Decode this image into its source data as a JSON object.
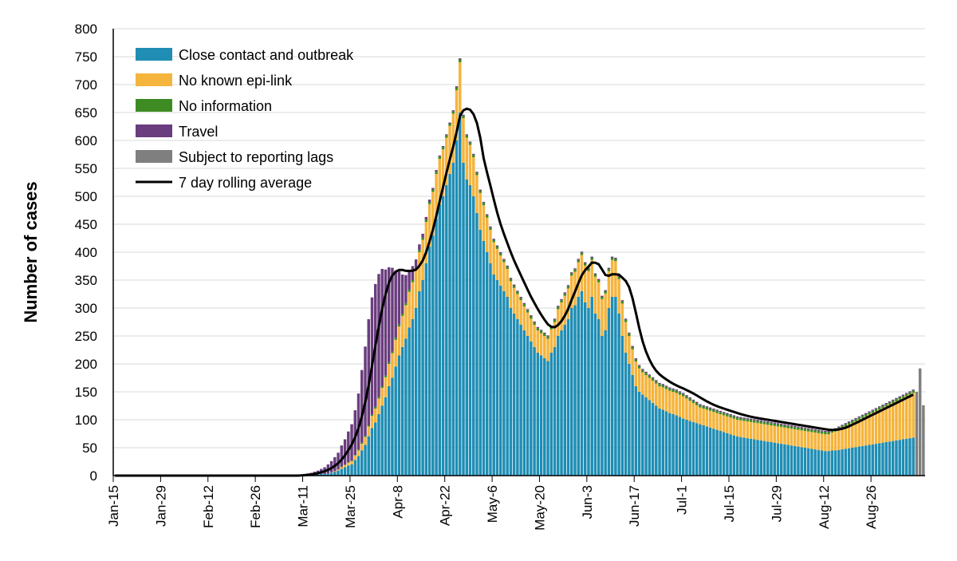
{
  "chart_data": {
    "type": "bar",
    "stacked": true,
    "title": "",
    "xlabel": "",
    "ylabel": "Number of cases",
    "ylim": [
      0,
      800
    ],
    "yticks": [
      0,
      50,
      100,
      150,
      200,
      250,
      300,
      350,
      400,
      450,
      500,
      550,
      600,
      650,
      700,
      750,
      800
    ],
    "xticks": [
      "Jan-15",
      "Jan-29",
      "Feb-12",
      "Feb-26",
      "Mar-11",
      "Mar-25",
      "Apr-8",
      "Apr-22",
      "May-6",
      "May-20",
      "Jun-3",
      "Jun-17",
      "Jul-1",
      "Jul-15",
      "Jul-29",
      "Aug-12",
      "Aug-26"
    ],
    "grid": true,
    "legend_position": "top-left",
    "x_start": "Jan-15",
    "colors": {
      "close_contact": "#1f8db4",
      "no_known": "#f5b43c",
      "no_info": "#3f8b23",
      "travel": "#6a3d7e",
      "lag": "#7f7f7f",
      "avg": "#000000",
      "grid": "#d9d9d9",
      "axis": "#000000"
    },
    "series": [
      {
        "key": "close_contact",
        "name": "Close contact and outbreak"
      },
      {
        "key": "no_known",
        "name": "No known epi-link"
      },
      {
        "key": "no_info",
        "name": "No information"
      },
      {
        "key": "travel",
        "name": "Travel"
      },
      {
        "key": "lag",
        "name": "Subject to reporting lags"
      },
      {
        "key": "avg",
        "name": "7 day rolling average",
        "type": "line"
      }
    ],
    "daily_data": {
      "close_contact": [
        0,
        0,
        0,
        0,
        0,
        0,
        0,
        0,
        0,
        0,
        0,
        0,
        0,
        0,
        0,
        0,
        0,
        0,
        0,
        0,
        0,
        0,
        0,
        0,
        0,
        0,
        0,
        0,
        0,
        0,
        0,
        0,
        0,
        0,
        0,
        0,
        0,
        0,
        0,
        0,
        0,
        0,
        0,
        0,
        0,
        0,
        0,
        0,
        0,
        0,
        0,
        0,
        0,
        0,
        0,
        1,
        1,
        1,
        1,
        2,
        2,
        3,
        3,
        4,
        5,
        7,
        9,
        12,
        15,
        18,
        20,
        28,
        35,
        45,
        55,
        70,
        85,
        95,
        110,
        125,
        140,
        160,
        175,
        195,
        215,
        230,
        245,
        265,
        280,
        300,
        330,
        350,
        380,
        410,
        430,
        460,
        485,
        500,
        520,
        540,
        560,
        600,
        650,
        560,
        530,
        520,
        500,
        470,
        440,
        420,
        400,
        380,
        360,
        350,
        340,
        330,
        320,
        300,
        290,
        280,
        270,
        260,
        250,
        240,
        230,
        220,
        215,
        210,
        205,
        220,
        230,
        250,
        260,
        270,
        280,
        300,
        305,
        320,
        330,
        310,
        300,
        320,
        290,
        280,
        250,
        260,
        300,
        320,
        320,
        290,
        250,
        220,
        200,
        180,
        160,
        150,
        145,
        140,
        135,
        130,
        125,
        120,
        118,
        115,
        112,
        110,
        108,
        105,
        102,
        100,
        98,
        96,
        94,
        92,
        90,
        88,
        86,
        84,
        82,
        80,
        78,
        76,
        74,
        72,
        70,
        69,
        68,
        67,
        66,
        65,
        64,
        63,
        62,
        61,
        60,
        59,
        58,
        57,
        56,
        55,
        54,
        53,
        52,
        51,
        50,
        49,
        48,
        47,
        46,
        45,
        44,
        44,
        45,
        45,
        46,
        47,
        48,
        49,
        50,
        51,
        52,
        53,
        54,
        55,
        56,
        57,
        58,
        59,
        60,
        61,
        62,
        63,
        64,
        65,
        66,
        67,
        68
      ],
      "no_known": [
        0,
        0,
        0,
        0,
        0,
        0,
        0,
        0,
        0,
        0,
        0,
        0,
        0,
        0,
        0,
        0,
        0,
        0,
        0,
        0,
        0,
        0,
        0,
        0,
        0,
        0,
        0,
        0,
        0,
        0,
        0,
        0,
        0,
        0,
        0,
        0,
        0,
        0,
        0,
        0,
        0,
        0,
        0,
        0,
        0,
        0,
        0,
        0,
        0,
        0,
        0,
        0,
        0,
        0,
        0,
        0,
        0,
        0,
        0,
        0,
        0,
        0,
        0,
        0,
        1,
        1,
        2,
        3,
        4,
        5,
        6,
        8,
        10,
        12,
        14,
        18,
        22,
        25,
        28,
        32,
        36,
        40,
        44,
        48,
        52,
        56,
        60,
        64,
        66,
        68,
        70,
        72,
        74,
        76,
        78,
        80,
        82,
        84,
        85,
        86,
        88,
        90,
        90,
        80,
        75,
        72,
        70,
        68,
        66,
        64,
        62,
        60,
        58,
        56,
        54,
        52,
        50,
        48,
        46,
        45,
        44,
        43,
        42,
        41,
        40,
        40,
        40,
        40,
        40,
        42,
        45,
        48,
        50,
        52,
        55,
        58,
        60,
        62,
        65,
        66,
        66,
        66,
        66,
        66,
        66,
        66,
        66,
        66,
        64,
        62,
        58,
        55,
        50,
        46,
        44,
        42,
        40,
        40,
        40,
        40,
        40,
        40,
        40,
        40,
        40,
        40,
        40,
        40,
        40,
        38,
        36,
        34,
        32,
        30,
        30,
        30,
        30,
        30,
        30,
        30,
        30,
        30,
        30,
        30,
        30,
        30,
        30,
        30,
        30,
        30,
        30,
        30,
        30,
        30,
        30,
        30,
        30,
        30,
        30,
        30,
        30,
        30,
        30,
        30,
        30,
        30,
        30,
        30,
        30,
        30,
        30,
        30,
        32,
        34,
        36,
        38,
        40,
        42,
        44,
        46,
        48,
        50,
        52,
        54,
        56,
        58,
        60,
        62,
        64,
        66,
        68,
        70,
        72,
        74,
        76,
        78,
        80,
        82
      ],
      "no_info": [
        0,
        0,
        0,
        0,
        0,
        0,
        0,
        0,
        0,
        0,
        0,
        0,
        0,
        0,
        0,
        0,
        0,
        0,
        0,
        0,
        0,
        0,
        0,
        0,
        0,
        0,
        0,
        0,
        0,
        0,
        0,
        0,
        0,
        0,
        0,
        0,
        0,
        0,
        0,
        0,
        0,
        0,
        0,
        0,
        0,
        0,
        0,
        0,
        0,
        0,
        0,
        0,
        0,
        0,
        0,
        0,
        0,
        0,
        0,
        0,
        0,
        0,
        0,
        0,
        0,
        0,
        0,
        1,
        1,
        1,
        1,
        1,
        2,
        2,
        2,
        2,
        2,
        3,
        3,
        3,
        3,
        3,
        3,
        4,
        4,
        4,
        4,
        4,
        4,
        4,
        4,
        4,
        4,
        4,
        4,
        4,
        4,
        4,
        4,
        4,
        4,
        5,
        5,
        4,
        4,
        4,
        4,
        4,
        4,
        4,
        4,
        4,
        4,
        4,
        4,
        4,
        4,
        4,
        4,
        4,
        4,
        4,
        4,
        4,
        4,
        4,
        4,
        4,
        4,
        4,
        4,
        4,
        4,
        4,
        4,
        4,
        4,
        4,
        4,
        4,
        4,
        4,
        4,
        4,
        4,
        4,
        4,
        4,
        4,
        4,
        4,
        4,
        4,
        4,
        4,
        4,
        4,
        4,
        4,
        4,
        4,
        4,
        4,
        4,
        4,
        4,
        4,
        4,
        4,
        4,
        4,
        4,
        4,
        4,
        4,
        4,
        4,
        4,
        4,
        4,
        4,
        4,
        4,
        4,
        4,
        4,
        4,
        4,
        4,
        4,
        4,
        4,
        4,
        4,
        4,
        4,
        4,
        4,
        4,
        4,
        4,
        4,
        4,
        4,
        4,
        4,
        4,
        4,
        4,
        4,
        4,
        4,
        4,
        4,
        4,
        4,
        4,
        4,
        4,
        4,
        4,
        4,
        4,
        4,
        4,
        4,
        4,
        4,
        4,
        4,
        4,
        4,
        4,
        4,
        4,
        4,
        4,
        4,
        4,
        4,
        4
      ],
      "travel": [
        0,
        0,
        0,
        0,
        0,
        0,
        0,
        0,
        0,
        0,
        0,
        0,
        0,
        0,
        0,
        0,
        0,
        0,
        0,
        0,
        0,
        0,
        0,
        0,
        0,
        0,
        0,
        0,
        0,
        0,
        0,
        0,
        0,
        0,
        0,
        0,
        0,
        0,
        0,
        0,
        0,
        0,
        0,
        0,
        0,
        0,
        0,
        0,
        0,
        0,
        0,
        0,
        0,
        0,
        0,
        1,
        2,
        3,
        4,
        5,
        7,
        9,
        12,
        16,
        20,
        25,
        30,
        38,
        45,
        55,
        65,
        80,
        100,
        130,
        160,
        190,
        210,
        220,
        220,
        210,
        190,
        170,
        150,
        120,
        95,
        70,
        50,
        35,
        25,
        15,
        10,
        7,
        5,
        4,
        3,
        3,
        2,
        2,
        2,
        2,
        2,
        2,
        2,
        2,
        2,
        2,
        2,
        2,
        2,
        2,
        2,
        2,
        2,
        2,
        2,
        2,
        2,
        2,
        2,
        2,
        2,
        2,
        2,
        2,
        2,
        2,
        2,
        2,
        2,
        2,
        2,
        2,
        2,
        2,
        2,
        2,
        2,
        2,
        2,
        2,
        2,
        2,
        2,
        2,
        2,
        2,
        2,
        2,
        2,
        2,
        2,
        2,
        2,
        2,
        2,
        2,
        2,
        2,
        2,
        2,
        2,
        2,
        2,
        2,
        2,
        2,
        2,
        2,
        2,
        2,
        2,
        2,
        2,
        2,
        2,
        2,
        2,
        2,
        2,
        2,
        2,
        2,
        2,
        2,
        2,
        2,
        2,
        2,
        2,
        2,
        2,
        2,
        2,
        2,
        2,
        2,
        2,
        2,
        2,
        2,
        2,
        2,
        2,
        2,
        2,
        2,
        2,
        2,
        2,
        2,
        2,
        2,
        2,
        2,
        2,
        2,
        2,
        2,
        2,
        2,
        2,
        2,
        2,
        2,
        2,
        2,
        2,
        2,
        2,
        2,
        2,
        2,
        2,
        2,
        2,
        2,
        2,
        2,
        2
      ],
      "lag": [],
      "avg": []
    },
    "lag_values": [
      150,
      192,
      126
    ]
  },
  "legend": [
    {
      "key": "close_contact",
      "label": "Close contact and outbreak"
    },
    {
      "key": "no_known",
      "label": "No known epi-link"
    },
    {
      "key": "no_info",
      "label": "No information"
    },
    {
      "key": "travel",
      "label": "Travel"
    },
    {
      "key": "lag",
      "label": "Subject to reporting lags"
    },
    {
      "key": "avg",
      "label": "7 day rolling average"
    }
  ]
}
